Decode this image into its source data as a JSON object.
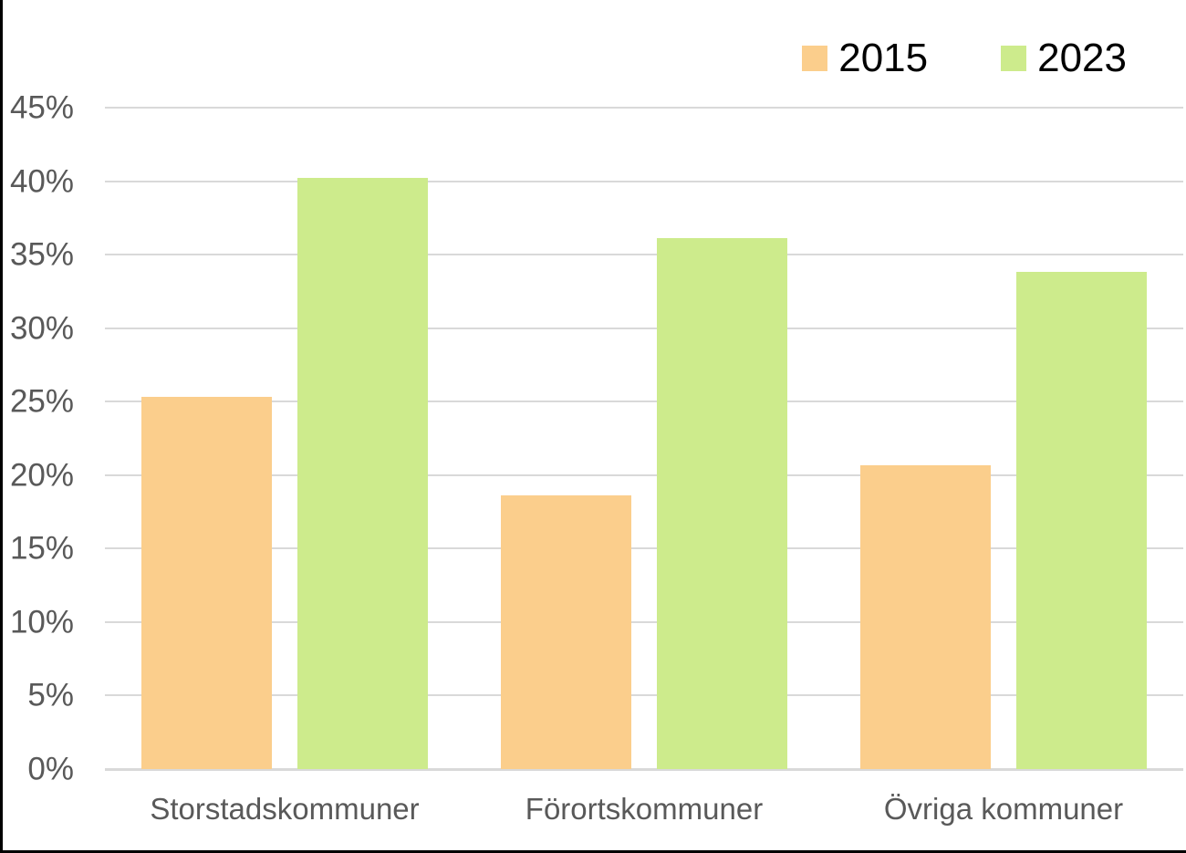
{
  "chart_data": {
    "type": "bar",
    "title": "",
    "categories": [
      "Storstadskommuner",
      "Förortskommuner",
      "Övriga kommuner"
    ],
    "series": [
      {
        "name": "2015",
        "color": "#FBCE8C",
        "values": [
          25.3,
          18.6,
          20.7
        ]
      },
      {
        "name": "2023",
        "color": "#CDEB8C",
        "values": [
          40.2,
          36.1,
          33.8
        ]
      }
    ],
    "ylim": [
      0,
      45
    ],
    "ytick_values": [
      0,
      5,
      10,
      15,
      20,
      25,
      30,
      35,
      40,
      45
    ],
    "yticks": [
      "0%",
      "5%",
      "10%",
      "15%",
      "20%",
      "25%",
      "30%",
      "35%",
      "40%",
      "45%"
    ],
    "xlabel": "",
    "ylabel": "",
    "grid": true,
    "legend_position": "top-right",
    "grid_color": "#D9D9D9",
    "axis_text_color": "#595959",
    "legend_text_color": "#000000",
    "background_color": "#FFFFFF"
  }
}
